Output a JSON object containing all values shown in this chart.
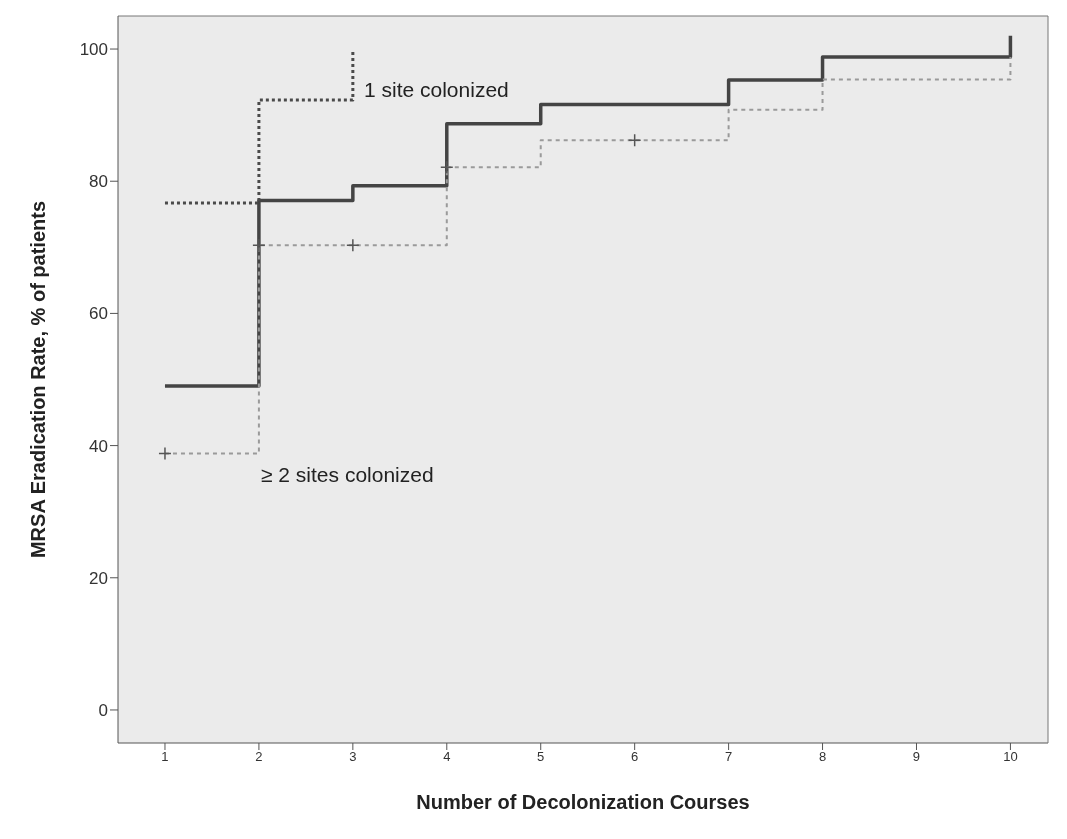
{
  "chart_data": {
    "type": "step",
    "xlabel": "Number of Decolonization Courses",
    "ylabel": "MRSA Eradication Rate, % of patients",
    "xlim": [
      0.5,
      10.4
    ],
    "xticks": [
      1,
      2,
      3,
      4,
      5,
      6,
      7,
      8,
      9,
      10
    ],
    "ylim": [
      -5,
      105
    ],
    "yticks": [
      0,
      20,
      40,
      60,
      80,
      100
    ],
    "grid": false,
    "legend": false,
    "series": [
      {
        "color": "#444444",
        "line_style": "solid",
        "x": [
          1,
          2,
          3,
          4,
          5,
          7,
          8,
          10,
          10
        ],
        "values": [
          49,
          77.1,
          79.3,
          88.7,
          91.6,
          95.3,
          98.8,
          98.8,
          102
        ]
      },
      {
        "color": "#4a4a4a",
        "line_style": "dotted",
        "x": [
          1,
          2,
          3,
          3
        ],
        "values": [
          76.7,
          92.3,
          92.3,
          100
        ]
      },
      {
        "color": "#9a9a9a",
        "line_style": "dashed",
        "x": [
          1,
          2,
          4,
          5,
          7,
          8,
          10,
          10
        ],
        "values": [
          38.8,
          70.3,
          82.1,
          86.2,
          90.8,
          95.4,
          95.4,
          98.8
        ]
      },
      {
        "type": "scatter",
        "marker": "cross",
        "color": "#555555",
        "x": [
          1,
          2,
          3,
          4,
          6
        ],
        "values": [
          38.8,
          70.3,
          70.3,
          82.1,
          86.2
        ]
      }
    ],
    "annotations": [
      "1 site colonized",
      "≥ 2 sites colonized"
    ]
  }
}
